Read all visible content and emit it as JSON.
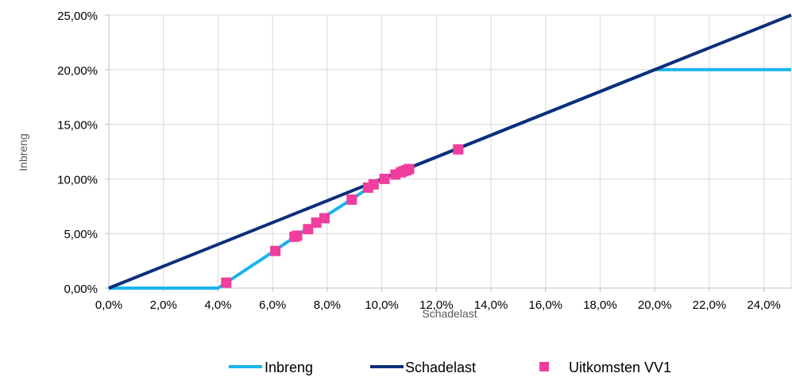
{
  "chart_data": {
    "type": "line",
    "title": "",
    "xlabel": "Schadelast",
    "ylabel": "Inbreng",
    "xlim": [
      0,
      25
    ],
    "ylim": [
      0,
      25
    ],
    "x_ticks": [
      0,
      2,
      4,
      6,
      8,
      10,
      12,
      14,
      16,
      18,
      20,
      22,
      24
    ],
    "x_tick_labels": [
      "0,0%",
      "2,0%",
      "4,0%",
      "6,0%",
      "8,0%",
      "10,0%",
      "12,0%",
      "14,0%",
      "16,0%",
      "18,0%",
      "20,0%",
      "22,0%",
      "24,0%"
    ],
    "y_ticks": [
      0,
      5,
      10,
      15,
      20,
      25
    ],
    "y_tick_labels": [
      "0,00%",
      "5,00%",
      "10,00%",
      "15,00%",
      "20,00%",
      "25,00%"
    ],
    "grid": true,
    "legend_position": "bottom",
    "series": [
      {
        "name": "Inbreng",
        "kind": "line",
        "color": "#1ab4ea",
        "points": [
          [
            0,
            0
          ],
          [
            4.0,
            0
          ],
          [
            6.0,
            3.3
          ],
          [
            7.0,
            5.0
          ],
          [
            8.0,
            6.7
          ],
          [
            9.0,
            8.3
          ],
          [
            10.0,
            10.0
          ],
          [
            20.0,
            20.0
          ],
          [
            25.0,
            20.0
          ]
        ]
      },
      {
        "name": "Schadelast",
        "kind": "line",
        "color": "#0d2e7a",
        "points": [
          [
            0,
            0
          ],
          [
            25,
            25
          ]
        ]
      },
      {
        "name": "Uitkomsten VV1",
        "kind": "scatter",
        "color": "#f03e9e",
        "points": [
          [
            4.3,
            0.5
          ],
          [
            6.1,
            3.4
          ],
          [
            6.8,
            4.7
          ],
          [
            6.9,
            4.8
          ],
          [
            7.3,
            5.4
          ],
          [
            7.6,
            6.0
          ],
          [
            7.9,
            6.4
          ],
          [
            8.9,
            8.1
          ],
          [
            9.5,
            9.2
          ],
          [
            9.7,
            9.5
          ],
          [
            10.1,
            10.0
          ],
          [
            10.5,
            10.4
          ],
          [
            10.7,
            10.6
          ],
          [
            10.8,
            10.7
          ],
          [
            10.9,
            10.8
          ],
          [
            11.0,
            10.9
          ],
          [
            12.8,
            12.7
          ]
        ]
      }
    ]
  }
}
